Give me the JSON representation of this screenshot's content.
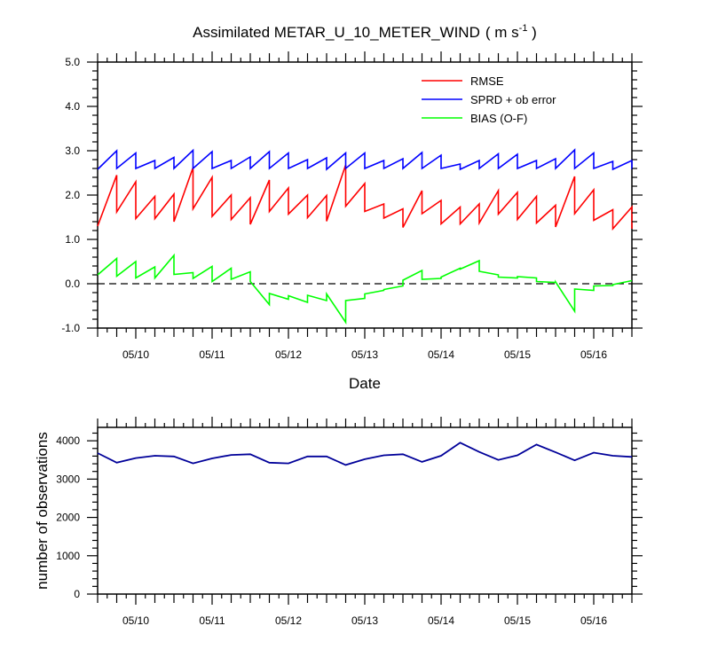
{
  "chart_data": [
    {
      "type": "line",
      "title": "Assimilated METAR_U_10_METER_WIND",
      "title_units": "( m s",
      "title_units_exp": "-1",
      "title_units_close": " )",
      "xlabel": "Date",
      "ylabel": "",
      "x_tick_labels": [
        "05/10",
        "05/11",
        "05/12",
        "05/13",
        "05/14",
        "05/15",
        "05/16"
      ],
      "y_tick_labels": [
        "-1.0",
        "0.0",
        "1.0",
        "2.0",
        "3.0",
        "4.0",
        "5.0"
      ],
      "ylim": [
        -1.0,
        5.0
      ],
      "xlim_days": [
        9.5,
        16.5
      ],
      "zero_line": true,
      "legend_position": "top-right",
      "series": [
        {
          "name": "RMSE",
          "color": "#ff0000",
          "cycles": [
            {
              "day": 9.5,
              "prior": 1.3,
              "posterior": 1.3
            },
            {
              "day": 9.75,
              "prior": 2.45,
              "posterior": 1.62
            },
            {
              "day": 10.0,
              "prior": 2.3,
              "posterior": 1.47
            },
            {
              "day": 10.25,
              "prior": 1.97,
              "posterior": 1.47
            },
            {
              "day": 10.5,
              "prior": 2.02,
              "posterior": 1.4
            },
            {
              "day": 10.75,
              "prior": 2.62,
              "posterior": 1.69
            },
            {
              "day": 11.0,
              "prior": 2.4,
              "posterior": 1.52
            },
            {
              "day": 11.25,
              "prior": 2.0,
              "posterior": 1.45
            },
            {
              "day": 11.5,
              "prior": 1.94,
              "posterior": 1.34
            },
            {
              "day": 11.75,
              "prior": 2.34,
              "posterior": 1.63
            },
            {
              "day": 12.0,
              "prior": 2.16,
              "posterior": 1.57
            },
            {
              "day": 12.25,
              "prior": 2.0,
              "posterior": 1.49
            },
            {
              "day": 12.5,
              "prior": 1.99,
              "posterior": 1.41
            },
            {
              "day": 12.75,
              "prior": 2.68,
              "posterior": 1.75
            },
            {
              "day": 13.0,
              "prior": 2.26,
              "posterior": 1.63
            },
            {
              "day": 13.25,
              "prior": 1.8,
              "posterior": 1.48
            },
            {
              "day": 13.5,
              "prior": 1.69,
              "posterior": 1.27
            },
            {
              "day": 13.75,
              "prior": 2.1,
              "posterior": 1.58
            },
            {
              "day": 14.0,
              "prior": 1.88,
              "posterior": 1.35
            },
            {
              "day": 14.25,
              "prior": 1.73,
              "posterior": 1.35
            },
            {
              "day": 14.5,
              "prior": 1.8,
              "posterior": 1.37
            },
            {
              "day": 14.75,
              "prior": 2.1,
              "posterior": 1.57
            },
            {
              "day": 15.0,
              "prior": 2.06,
              "posterior": 1.45
            },
            {
              "day": 15.25,
              "prior": 1.97,
              "posterior": 1.37
            },
            {
              "day": 15.5,
              "prior": 1.77,
              "posterior": 1.28
            },
            {
              "day": 15.75,
              "prior": 2.42,
              "posterior": 1.58
            },
            {
              "day": 16.0,
              "prior": 2.12,
              "posterior": 1.43
            },
            {
              "day": 16.25,
              "prior": 1.67,
              "posterior": 1.24
            },
            {
              "day": 16.5,
              "prior": 1.73,
              "posterior": 1.24
            }
          ]
        },
        {
          "name": "SPRD + ob error",
          "color": "#0000ff",
          "cycles": [
            {
              "day": 9.5,
              "prior": 2.58,
              "posterior": 2.58
            },
            {
              "day": 9.75,
              "prior": 3.0,
              "posterior": 2.6
            },
            {
              "day": 10.0,
              "prior": 2.95,
              "posterior": 2.6
            },
            {
              "day": 10.25,
              "prior": 2.78,
              "posterior": 2.6
            },
            {
              "day": 10.5,
              "prior": 2.85,
              "posterior": 2.6
            },
            {
              "day": 10.75,
              "prior": 3.01,
              "posterior": 2.6
            },
            {
              "day": 11.0,
              "prior": 2.98,
              "posterior": 2.6
            },
            {
              "day": 11.25,
              "prior": 2.78,
              "posterior": 2.6
            },
            {
              "day": 11.5,
              "prior": 2.86,
              "posterior": 2.6
            },
            {
              "day": 11.75,
              "prior": 2.98,
              "posterior": 2.6
            },
            {
              "day": 12.0,
              "prior": 2.95,
              "posterior": 2.6
            },
            {
              "day": 12.25,
              "prior": 2.8,
              "posterior": 2.6
            },
            {
              "day": 12.5,
              "prior": 2.84,
              "posterior": 2.58
            },
            {
              "day": 12.75,
              "prior": 2.95,
              "posterior": 2.6
            },
            {
              "day": 13.0,
              "prior": 2.95,
              "posterior": 2.6
            },
            {
              "day": 13.25,
              "prior": 2.78,
              "posterior": 2.6
            },
            {
              "day": 13.5,
              "prior": 2.82,
              "posterior": 2.6
            },
            {
              "day": 13.75,
              "prior": 2.96,
              "posterior": 2.6
            },
            {
              "day": 14.0,
              "prior": 2.9,
              "posterior": 2.6
            },
            {
              "day": 14.25,
              "prior": 2.7,
              "posterior": 2.58
            },
            {
              "day": 14.5,
              "prior": 2.78,
              "posterior": 2.6
            },
            {
              "day": 14.75,
              "prior": 2.93,
              "posterior": 2.6
            },
            {
              "day": 15.0,
              "prior": 2.92,
              "posterior": 2.6
            },
            {
              "day": 15.25,
              "prior": 2.78,
              "posterior": 2.6
            },
            {
              "day": 15.5,
              "prior": 2.82,
              "posterior": 2.6
            },
            {
              "day": 15.75,
              "prior": 3.02,
              "posterior": 2.6
            },
            {
              "day": 16.0,
              "prior": 2.95,
              "posterior": 2.6
            },
            {
              "day": 16.25,
              "prior": 2.76,
              "posterior": 2.58
            },
            {
              "day": 16.5,
              "prior": 2.78,
              "posterior": 2.58
            }
          ]
        },
        {
          "name": "BIAS (O-F)",
          "color": "#00ff00",
          "cycles": [
            {
              "day": 9.5,
              "prior": 0.2,
              "posterior": 0.2
            },
            {
              "day": 9.75,
              "prior": 0.57,
              "posterior": 0.17
            },
            {
              "day": 10.0,
              "prior": 0.5,
              "posterior": 0.13
            },
            {
              "day": 10.25,
              "prior": 0.38,
              "posterior": 0.13
            },
            {
              "day": 10.5,
              "prior": 0.64,
              "posterior": 0.21
            },
            {
              "day": 10.75,
              "prior": 0.25,
              "posterior": 0.12
            },
            {
              "day": 11.0,
              "prior": 0.39,
              "posterior": 0.05
            },
            {
              "day": 11.25,
              "prior": 0.35,
              "posterior": 0.1
            },
            {
              "day": 11.5,
              "prior": 0.27,
              "posterior": 0.05
            },
            {
              "day": 11.75,
              "prior": -0.47,
              "posterior": -0.22
            },
            {
              "day": 12.0,
              "prior": -0.35,
              "posterior": -0.27
            },
            {
              "day": 12.25,
              "prior": -0.42,
              "posterior": -0.26
            },
            {
              "day": 12.5,
              "prior": -0.38,
              "posterior": -0.23
            },
            {
              "day": 12.75,
              "prior": -0.87,
              "posterior": -0.38
            },
            {
              "day": 13.0,
              "prior": -0.33,
              "posterior": -0.23
            },
            {
              "day": 13.25,
              "prior": -0.15,
              "posterior": -0.13
            },
            {
              "day": 13.5,
              "prior": -0.05,
              "posterior": 0.08
            },
            {
              "day": 13.75,
              "prior": 0.3,
              "posterior": 0.1
            },
            {
              "day": 14.0,
              "prior": 0.12,
              "posterior": 0.15
            },
            {
              "day": 14.25,
              "prior": 0.35,
              "posterior": 0.33
            },
            {
              "day": 14.5,
              "prior": 0.52,
              "posterior": 0.28
            },
            {
              "day": 14.75,
              "prior": 0.2,
              "posterior": 0.15
            },
            {
              "day": 15.0,
              "prior": 0.13,
              "posterior": 0.16
            },
            {
              "day": 15.25,
              "prior": 0.13,
              "posterior": 0.05
            },
            {
              "day": 15.5,
              "prior": 0.03,
              "posterior": 0.04
            },
            {
              "day": 15.75,
              "prior": -0.62,
              "posterior": -0.12
            },
            {
              "day": 16.0,
              "prior": -0.15,
              "posterior": -0.05
            },
            {
              "day": 16.25,
              "prior": -0.04,
              "posterior": -0.02
            },
            {
              "day": 16.5,
              "prior": 0.07,
              "posterior": 0.07
            }
          ]
        }
      ]
    },
    {
      "type": "line",
      "title": "",
      "xlabel": "",
      "ylabel": "number of observations",
      "x_tick_labels": [
        "05/10",
        "05/11",
        "05/12",
        "05/13",
        "05/14",
        "05/15",
        "05/16"
      ],
      "y_tick_labels": [
        "0",
        "1000",
        "2000",
        "3000",
        "4000"
      ],
      "ylim": [
        0,
        4350
      ],
      "xlim_days": [
        9.5,
        16.5
      ],
      "series": [
        {
          "name": "",
          "color": "#000099",
          "x": [
            9.5,
            9.75,
            10.0,
            10.25,
            10.5,
            10.75,
            11.0,
            11.25,
            11.5,
            11.75,
            12.0,
            12.25,
            12.5,
            12.75,
            13.0,
            13.25,
            13.5,
            13.75,
            14.0,
            14.25,
            14.5,
            14.75,
            15.0,
            15.25,
            15.5,
            15.75,
            16.0,
            16.25,
            16.5
          ],
          "values": [
            3680,
            3430,
            3550,
            3610,
            3590,
            3410,
            3540,
            3630,
            3650,
            3430,
            3410,
            3590,
            3590,
            3370,
            3520,
            3620,
            3650,
            3450,
            3610,
            3950,
            3710,
            3500,
            3620,
            3900,
            3700,
            3490,
            3690,
            3610,
            3580
          ]
        }
      ]
    }
  ]
}
